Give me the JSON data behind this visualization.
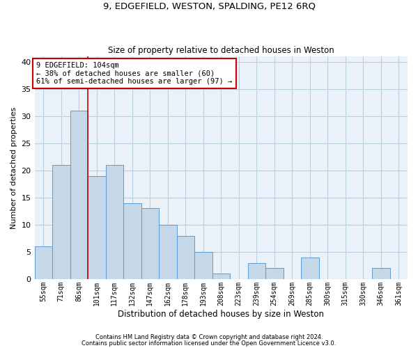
{
  "title1": "9, EDGEFIELD, WESTON, SPALDING, PE12 6RQ",
  "title2": "Size of property relative to detached houses in Weston",
  "xlabel": "Distribution of detached houses by size in Weston",
  "ylabel": "Number of detached properties",
  "categories": [
    "55sqm",
    "71sqm",
    "86sqm",
    "101sqm",
    "117sqm",
    "132sqm",
    "147sqm",
    "162sqm",
    "178sqm",
    "193sqm",
    "208sqm",
    "223sqm",
    "239sqm",
    "254sqm",
    "269sqm",
    "285sqm",
    "300sqm",
    "315sqm",
    "330sqm",
    "346sqm",
    "361sqm"
  ],
  "values": [
    6,
    21,
    31,
    19,
    21,
    14,
    13,
    10,
    8,
    5,
    1,
    0,
    3,
    2,
    0,
    4,
    0,
    0,
    0,
    2,
    0
  ],
  "bar_color": "#c5d8e8",
  "bar_edge_color": "#5b9bd5",
  "vline_x_index": 3.0,
  "vline_color": "#cc0000",
  "annotation_text": "9 EDGEFIELD: 104sqm\n← 38% of detached houses are smaller (60)\n61% of semi-detached houses are larger (97) →",
  "annotation_box_edgecolor": "#cc0000",
  "ylim": [
    0,
    41
  ],
  "yticks": [
    0,
    5,
    10,
    15,
    20,
    25,
    30,
    35,
    40
  ],
  "footer1": "Contains HM Land Registry data © Crown copyright and database right 2024.",
  "footer2": "Contains public sector information licensed under the Open Government Licence v3.0.",
  "grid_color": "#b8cfe0",
  "bg_color": "#eaf1f8"
}
